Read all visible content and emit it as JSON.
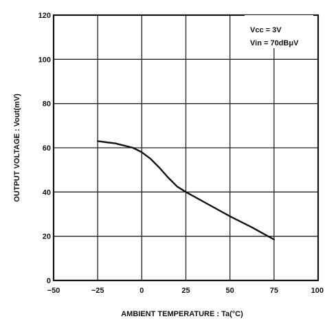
{
  "chart_data": {
    "type": "line",
    "title": "",
    "xlabel": "AMBIENT TEMPERATURE : Ta(°C)",
    "ylabel": "OUTPUT VOLTAGE : Vout(mV)",
    "xlim": [
      -50,
      100
    ],
    "ylim": [
      0,
      120
    ],
    "x_ticks": [
      "−50",
      "−25",
      "0",
      "25",
      "50",
      "75",
      "100"
    ],
    "y_ticks": [
      "0",
      "20",
      "40",
      "60",
      "80",
      "100",
      "120"
    ],
    "x_tick_values": [
      -50,
      -25,
      0,
      25,
      50,
      75,
      100
    ],
    "y_tick_values": [
      0,
      20,
      40,
      60,
      80,
      100,
      120
    ],
    "grid": true,
    "legend_position": "top-right",
    "annotations": [
      "Vcc = 3V",
      "Vin = 70dBμV"
    ],
    "series": [
      {
        "x": [
          -25,
          -20,
          -15,
          -10,
          -5,
          0,
          5,
          10,
          15,
          20,
          25,
          37.5,
          50,
          62.5,
          75
        ],
        "y": [
          63,
          62.5,
          62,
          61,
          60,
          58,
          55,
          51,
          46.5,
          42.5,
          40,
          34.5,
          29,
          24,
          18.5
        ]
      }
    ],
    "colors": {
      "line": "#111111",
      "grid": "#222222",
      "background": "#ffffff"
    }
  }
}
